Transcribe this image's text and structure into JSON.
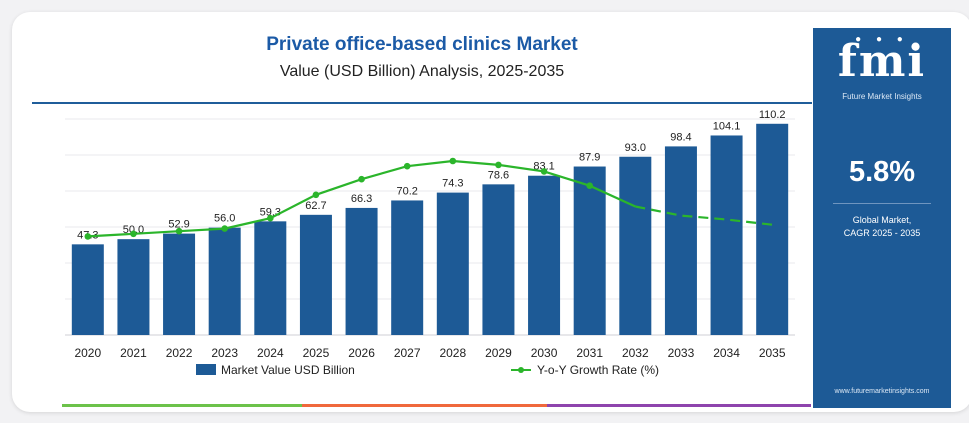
{
  "header": {
    "title": "Private office-based clinics Market",
    "subtitle": "Value (USD Billion) Analysis, 2025-2035"
  },
  "sidebar": {
    "logo_text": "fmi",
    "logo_subtext": "Future Market Insights",
    "cagr_value": "5.8%",
    "cagr_label_line1": "Global Market,",
    "cagr_label_line2": "CAGR 2025 - 2035",
    "website": "www.futuremarketinsights.com"
  },
  "colors": {
    "bar": "#1d5a96",
    "line": "#2bb52b",
    "sidebar": "#1d5a96",
    "title": "#1b5aa6",
    "bottom_green": "#6cc24a",
    "bottom_orange": "#f0683c",
    "bottom_purple": "#8e44ad"
  },
  "chart_data": {
    "type": "bar",
    "categories": [
      "2020",
      "2021",
      "2022",
      "2023",
      "2024",
      "2025",
      "2026",
      "2027",
      "2028",
      "2029",
      "2030",
      "2031",
      "2032",
      "2033",
      "2034",
      "2035"
    ],
    "series": [
      {
        "name": "Market Value USD Billion",
        "type": "bar",
        "values": [
          47.3,
          50.0,
          52.9,
          56.0,
          59.3,
          62.7,
          66.3,
          70.2,
          74.3,
          78.6,
          83.1,
          87.9,
          93.0,
          98.4,
          104.1,
          110.2
        ],
        "labels": [
          "47.3",
          "50.0",
          "52.9",
          "56.0",
          "59.3",
          "62.7",
          "66.3",
          "70.2",
          "74.3",
          "78.6",
          "83.1",
          "87.9",
          "93.0",
          "98.4",
          "104.1",
          "110.2"
        ]
      },
      {
        "name": "Y-o-Y Growth Rate (%)",
        "type": "line",
        "values": [
          5.6,
          5.7,
          5.8,
          5.9,
          6.3,
          7.2,
          7.8,
          8.3,
          8.5,
          8.35,
          8.1,
          7.55,
          6.75,
          6.4,
          6.25,
          6.05
        ],
        "dashed_from_index": 12
      }
    ],
    "ylim": [
      0,
      120
    ],
    "grid": true,
    "legend_position": "bottom"
  }
}
